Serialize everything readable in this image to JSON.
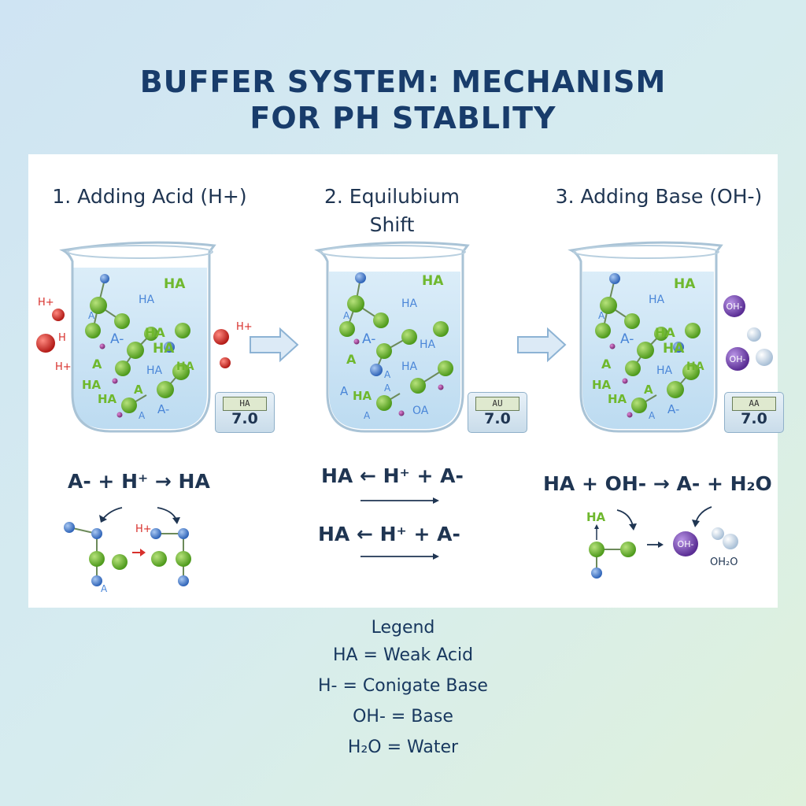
{
  "title_line1": "BUFFER SYSTEM: MECHANISM",
  "title_line2": "FOR PH STABLITY",
  "steps": [
    {
      "label": "1. Adding Acid (H+)"
    },
    {
      "label": "2. Equilubium Shift"
    },
    {
      "label": "3. Adding Base (OH-)"
    }
  ],
  "meters": [
    {
      "display": "HA",
      "value": "7.0"
    },
    {
      "display": "AU",
      "value": "7.0"
    },
    {
      "display": "AA",
      "value": "7.0"
    }
  ],
  "equations": {
    "step1": "A- + H⁺ → HA",
    "step2_line1": "HA ← H⁺ + A-",
    "step2_line2": "HA ← H⁺ + A-",
    "step3": "HA + OH- → A- + H₂O"
  },
  "beaker_labels": {
    "ha": "HA",
    "a": "A",
    "a_minus": "A-",
    "h_plus": "H+",
    "h": "H",
    "oh_minus": "OH-",
    "oa": "OA",
    "ha_small": "HA"
  },
  "mechanism_labels": {
    "h_plus": "H+",
    "a": "A",
    "ha": "HA",
    "oh_minus": "OH-",
    "h2o": "OH₂O"
  },
  "legend": {
    "title": "Legend",
    "items": [
      "HA = Weak Acid",
      "H- = Conigate Base",
      "OH- = Base",
      "H₂O = Water"
    ]
  },
  "colors": {
    "title": "#183c6b",
    "green_molecule": "#6fb82e",
    "blue_molecule": "#4a86d8",
    "red_ion": "#d8302c",
    "purple_ion": "#7a4bb0",
    "water": "#cfe2f3"
  }
}
